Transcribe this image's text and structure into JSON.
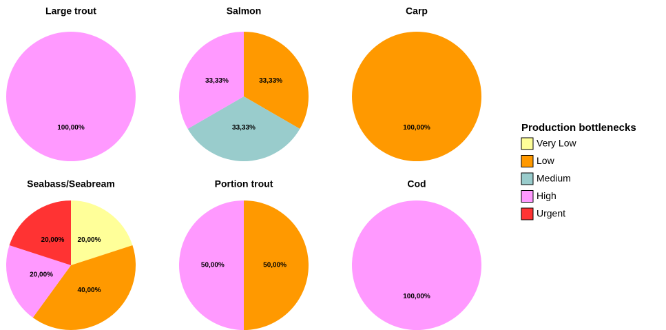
{
  "legend": {
    "title": "Production bottlenecks",
    "items": [
      {
        "name": "Very Low",
        "color": "#ffff99"
      },
      {
        "name": "Low",
        "color": "#ff9900"
      },
      {
        "name": "Medium",
        "color": "#99cccc"
      },
      {
        "name": "High",
        "color": "#ff99ff"
      },
      {
        "name": "Urgent",
        "color": "#ff3333"
      }
    ]
  },
  "chart_data": [
    {
      "type": "pie",
      "title": "Large trout",
      "values": [
        100
      ],
      "value_labels": [
        "100,00%"
      ],
      "colors": [
        "#ff99ff"
      ]
    },
    {
      "type": "pie",
      "title": "Salmon",
      "values": [
        33.33,
        33.33,
        33.33
      ],
      "value_labels": [
        "33,33%",
        "33,33%",
        "33,33%"
      ],
      "colors": [
        "#ff9900",
        "#99cccc",
        "#ff99ff"
      ]
    },
    {
      "type": "pie",
      "title": "Carp",
      "values": [
        100
      ],
      "value_labels": [
        "100,00%"
      ],
      "colors": [
        "#ff9900"
      ]
    },
    {
      "type": "pie",
      "title": "Seabass/Seabream",
      "values": [
        20,
        40,
        20,
        20
      ],
      "value_labels": [
        "20,00%",
        "40,00%",
        "20,00%",
        "20,00%"
      ],
      "colors": [
        "#ffff99",
        "#ff9900",
        "#ff99ff",
        "#ff3333"
      ]
    },
    {
      "type": "pie",
      "title": "Portion trout",
      "values": [
        50,
        50
      ],
      "value_labels": [
        "50,00%",
        "50,00%"
      ],
      "colors": [
        "#ff9900",
        "#ff99ff"
      ]
    },
    {
      "type": "pie",
      "title": "Cod",
      "values": [
        100
      ],
      "value_labels": [
        "100,00%"
      ],
      "colors": [
        "#ff99ff"
      ]
    }
  ]
}
